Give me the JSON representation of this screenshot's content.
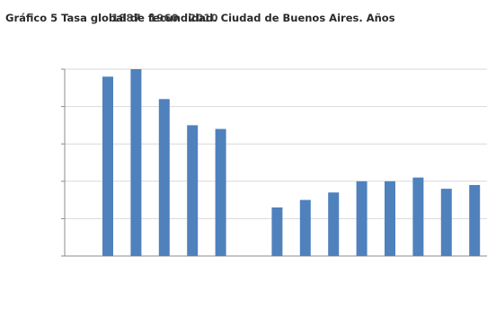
{
  "chart_data": {
    "type": "bar",
    "title": "Gráfico 5 Tasa global de fecundidad. Ciudad de Buenos Aires. Años",
    "title_overlap_fragments": [
      "1887",
      "1960",
      "2010"
    ],
    "grid": true,
    "colors": {
      "bar": "#4f81bd",
      "grid": "#d9d9d9",
      "axis": "#8c8c8c"
    },
    "ylim": [
      0,
      5
    ],
    "values": [
      4.8,
      5.0,
      4.2,
      3.5,
      3.4,
      null,
      1.3,
      1.5,
      1.7,
      2.0,
      2.0,
      2.1,
      1.8,
      1.9
    ]
  }
}
